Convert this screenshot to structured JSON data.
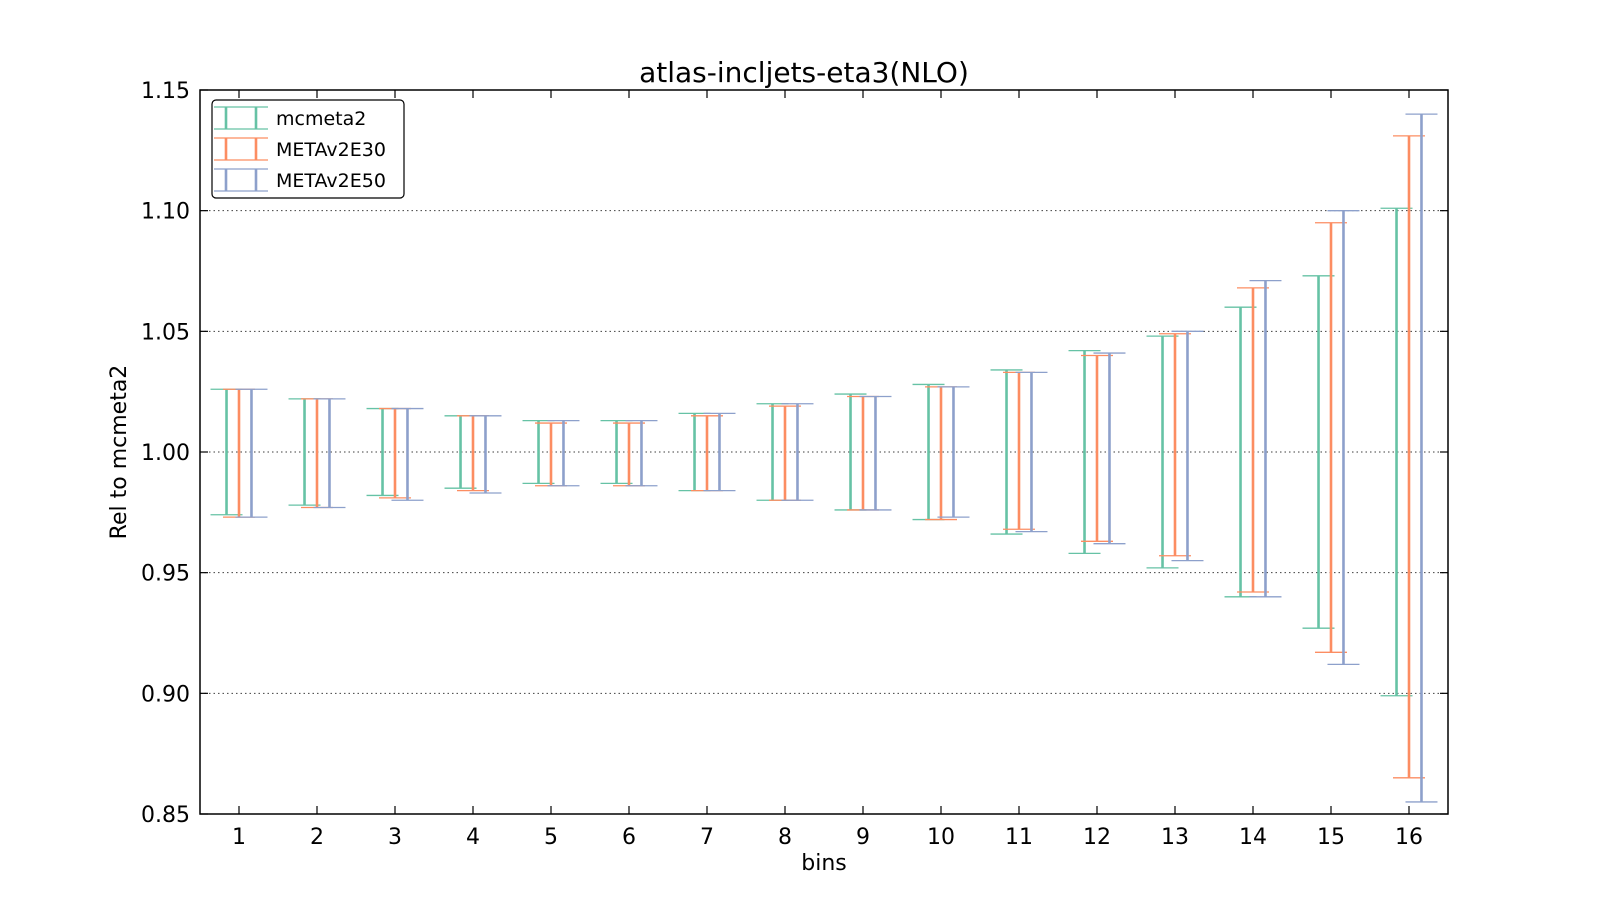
{
  "chart_data": {
    "type": "errorbar",
    "title": "atlas-incljets-eta3(NLO)",
    "xlabel": "bins",
    "ylabel": "Rel to mcmeta2",
    "xlim": [
      0.5,
      16.5
    ],
    "ylim": [
      0.85,
      1.15
    ],
    "yticks": [
      "0.85",
      "0.90",
      "0.95",
      "1.00",
      "1.05",
      "1.10",
      "1.15"
    ],
    "x": [
      1,
      2,
      3,
      4,
      5,
      6,
      7,
      8,
      9,
      10,
      11,
      12,
      13,
      14,
      15,
      16
    ],
    "grid": "horizontal dotted",
    "legend_position": "top-left",
    "series": [
      {
        "name": "mcmeta2",
        "color": "#66c2a5",
        "low": [
          0.974,
          0.978,
          0.982,
          0.985,
          0.987,
          0.987,
          0.984,
          0.98,
          0.976,
          0.972,
          0.966,
          0.958,
          0.952,
          0.94,
          0.927,
          0.899
        ],
        "high": [
          1.026,
          1.022,
          1.018,
          1.015,
          1.013,
          1.013,
          1.016,
          1.02,
          1.024,
          1.028,
          1.034,
          1.042,
          1.048,
          1.06,
          1.073,
          1.101
        ]
      },
      {
        "name": "METAv2E30",
        "color": "#fc8d62",
        "low": [
          0.973,
          0.977,
          0.981,
          0.984,
          0.986,
          0.986,
          0.984,
          0.98,
          0.976,
          0.972,
          0.968,
          0.963,
          0.957,
          0.942,
          0.917,
          0.865
        ],
        "high": [
          1.026,
          1.022,
          1.018,
          1.015,
          1.012,
          1.012,
          1.015,
          1.019,
          1.023,
          1.027,
          1.033,
          1.04,
          1.049,
          1.068,
          1.095,
          1.131
        ]
      },
      {
        "name": "METAv2E50",
        "color": "#8da0cb",
        "low": [
          0.973,
          0.977,
          0.98,
          0.983,
          0.986,
          0.986,
          0.984,
          0.98,
          0.976,
          0.973,
          0.967,
          0.962,
          0.955,
          0.94,
          0.912,
          0.855
        ],
        "high": [
          1.026,
          1.022,
          1.018,
          1.015,
          1.013,
          1.013,
          1.016,
          1.02,
          1.023,
          1.027,
          1.033,
          1.041,
          1.05,
          1.071,
          1.1,
          1.14
        ]
      }
    ]
  }
}
